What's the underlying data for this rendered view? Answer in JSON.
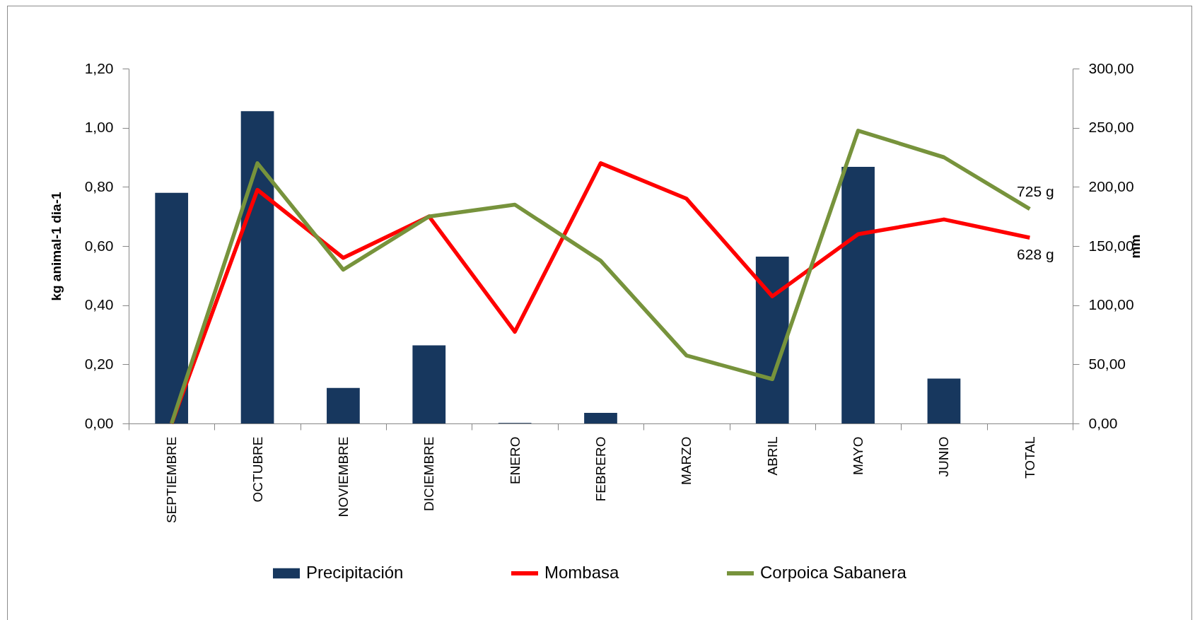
{
  "chart_data": {
    "type": "bar",
    "ylabel": "kg animal-1 dia-1",
    "y2label": "mm",
    "categories": [
      "SEPTIEMBRE",
      "OCTUBRE",
      "NOVIEMBRE",
      "DICIEMBRE",
      "ENERO",
      "FEBRERO",
      "MARZO",
      "ABRIL",
      "MAYO",
      "JUNIO",
      "TOTAL"
    ],
    "series": [
      {
        "name": "Precipitación",
        "axis": "y2",
        "color": "#17375e",
        "values": [
          195,
          264,
          30,
          66,
          0.5,
          9,
          0,
          141,
          217,
          38,
          null
        ]
      },
      {
        "name": "Mombasa",
        "type": "line",
        "color": "#ff0000",
        "values": [
          0,
          0.79,
          0.56,
          0.7,
          0.31,
          0.88,
          0.76,
          0.43,
          0.64,
          0.69,
          0.628
        ]
      },
      {
        "name": "Corpoica Sabanera",
        "type": "line",
        "color": "#77933c",
        "values": [
          0,
          0.88,
          0.52,
          0.7,
          0.74,
          0.55,
          0.23,
          0.15,
          0.99,
          0.9,
          0.725
        ]
      }
    ],
    "annotations": [
      {
        "text": "725 g",
        "x": "TOTAL",
        "y": 0.725
      },
      {
        "text": "628 g",
        "x": "TOTAL",
        "y": 0.628
      }
    ],
    "ylim": [
      0,
      1.2
    ],
    "yticks": [
      {
        "value": 0,
        "label": "0,00"
      },
      {
        "value": 0.2,
        "label": "0,20"
      },
      {
        "value": 0.4,
        "label": "0,40"
      },
      {
        "value": 0.6,
        "label": "0,60"
      },
      {
        "value": 0.8,
        "label": "0,80"
      },
      {
        "value": 1,
        "label": "1,00"
      },
      {
        "value": 1.2,
        "label": "1,20"
      }
    ],
    "y2lim": [
      0,
      300
    ],
    "y2ticks": [
      {
        "value": 0,
        "label": "0,00"
      },
      {
        "value": 50,
        "label": "50,00"
      },
      {
        "value": 100,
        "label": "100,00"
      },
      {
        "value": 150,
        "label": "150,00"
      },
      {
        "value": 200,
        "label": "200,00"
      },
      {
        "value": 250,
        "label": "250,00"
      },
      {
        "value": 300,
        "label": "300,00"
      }
    ],
    "grid": false,
    "legend": "bottom"
  }
}
